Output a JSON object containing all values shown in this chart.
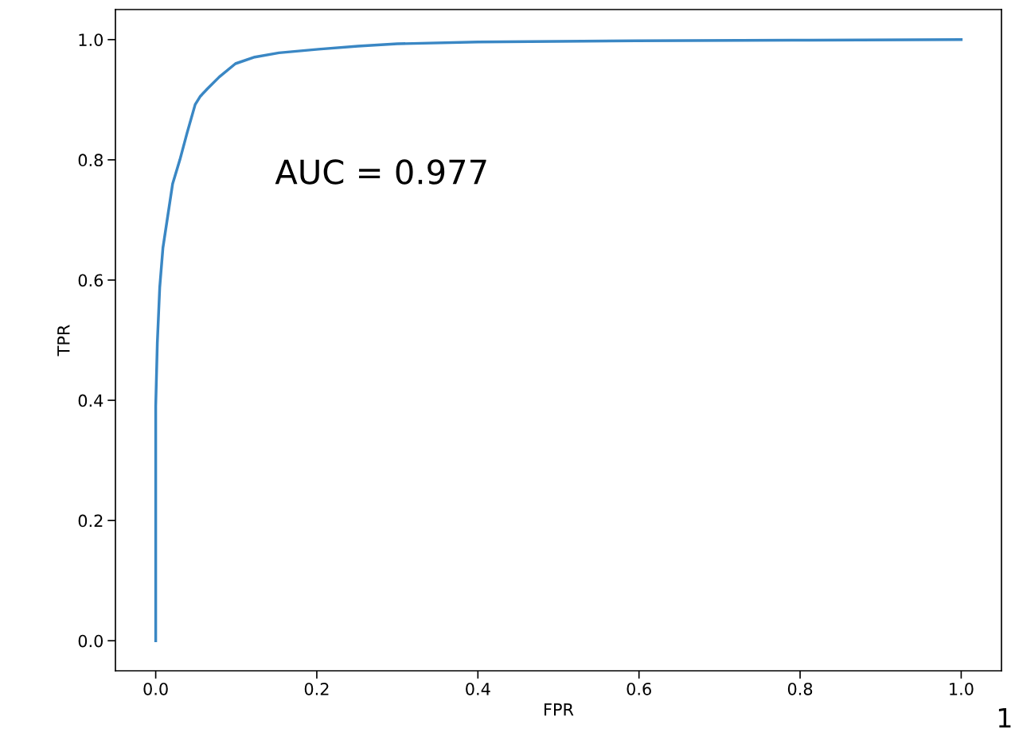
{
  "chart_data": {
    "type": "line",
    "xlabel": "FPR",
    "ylabel": "TPR",
    "x": [
      0,
      0,
      0,
      0.002,
      0.005,
      0.009,
      0.015,
      0.021,
      0.03,
      0.039,
      0.049,
      0.055,
      0.064,
      0.079,
      0.099,
      0.123,
      0.153,
      0.202,
      0.251,
      0.3,
      0.4,
      0.596,
      0.79,
      1.0
    ],
    "series": [
      {
        "color": "#3a87c4",
        "values": [
          0,
          0.14,
          0.39,
          0.495,
          0.588,
          0.654,
          0.707,
          0.76,
          0.8,
          0.845,
          0.892,
          0.905,
          0.918,
          0.938,
          0.96,
          0.971,
          0.978,
          0.984,
          0.989,
          0.993,
          0.996,
          0.998,
          0.999,
          1.0
        ]
      }
    ],
    "xlim": [
      -0.05,
      1.05
    ],
    "ylim": [
      -0.05,
      1.05
    ],
    "xticks": [
      {
        "value": 0,
        "label": "0.0"
      },
      0.2,
      0.4,
      0.6,
      0.8,
      {
        "value": 1,
        "label": "1.0"
      }
    ],
    "yticks": [
      {
        "value": 0,
        "label": "0.0"
      },
      0.2,
      0.4,
      0.6,
      0.8,
      {
        "value": 1,
        "label": "1.0"
      }
    ],
    "annotations": [
      "AUC = 0.977",
      "1"
    ]
  }
}
